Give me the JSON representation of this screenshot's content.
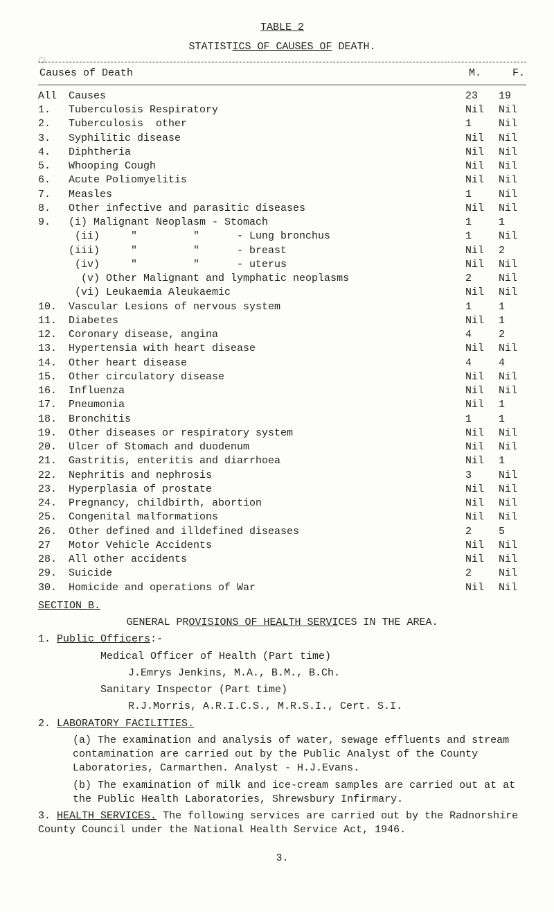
{
  "page": {
    "table_label": "TABLE 2",
    "subtitle_pre": "STATIST",
    "subtitle_u": "ICS OF CAUSES OF",
    "subtitle_post": " DEATH.",
    "side_mark": "◌",
    "header_left": "Causes of Death",
    "header_m": "M.",
    "header_f": "F.",
    "page_number": "3."
  },
  "rows": [
    {
      "n": "All",
      "d": "Causes",
      "m": "23",
      "f": "19"
    },
    {
      "n": "1.",
      "d": "Tuberculosis Respiratory",
      "m": "Nil",
      "f": "Nil"
    },
    {
      "n": "2.",
      "d": "Tuberculosis  other",
      "m": "1",
      "f": "Nil"
    },
    {
      "n": "3.",
      "d": "Syphilitic disease",
      "m": "Nil",
      "f": "Nil"
    },
    {
      "n": "4.",
      "d": "Diphtheria",
      "m": "Nil",
      "f": "Nil"
    },
    {
      "n": "5.",
      "d": "Whooping Cough",
      "m": "Nil",
      "f": "Nil"
    },
    {
      "n": "6.",
      "d": "Acute Poliomyelitis",
      "m": "Nil",
      "f": "Nil"
    },
    {
      "n": "7.",
      "d": "Measles",
      "m": "1",
      "f": "Nil"
    },
    {
      "n": "8.",
      "d": "Other infective and parasitic diseases",
      "m": "Nil",
      "f": "Nil"
    },
    {
      "n": "9.",
      "d": "(i) Malignant Neoplasm - Stomach",
      "m": "1",
      "f": "1"
    },
    {
      "n": "",
      "d": " (ii)     \"         \"      - Lung bronchus",
      "m": "1",
      "f": "Nil"
    },
    {
      "n": "",
      "d": "(iii)     \"         \"      - breast",
      "m": "Nil",
      "f": "2"
    },
    {
      "n": "",
      "d": " (iv)     \"         \"      - uterus",
      "m": "Nil",
      "f": "Nil"
    },
    {
      "n": "",
      "d": "  (v) Other Malignant and lymphatic neoplasms",
      "m": "2",
      "f": "Nil"
    },
    {
      "n": "",
      "d": " (vi) Leukaemia Aleukaemic",
      "m": "Nil",
      "f": "Nil"
    },
    {
      "n": "10.",
      "d": "Vascular Lesions of nervous system",
      "m": "1",
      "f": "1"
    },
    {
      "n": "11.",
      "d": "Diabetes",
      "m": "Nil",
      "f": "1"
    },
    {
      "n": "12.",
      "d": "Coronary disease, angina",
      "m": "4",
      "f": "2"
    },
    {
      "n": "13.",
      "d": "Hypertensia with heart disease",
      "m": "Nil",
      "f": "Nil"
    },
    {
      "n": "14.",
      "d": "Other heart disease",
      "m": "4",
      "f": "4"
    },
    {
      "n": "15.",
      "d": "Other circulatory disease",
      "m": "Nil",
      "f": "Nil"
    },
    {
      "n": "16.",
      "d": "Influenza",
      "m": "Nil",
      "f": "Nil"
    },
    {
      "n": "17.",
      "d": "Pneumonia",
      "m": "Nil",
      "f": "1"
    },
    {
      "n": "18.",
      "d": "Bronchitis",
      "m": "1",
      "f": "1"
    },
    {
      "n": "19.",
      "d": "Other diseases or respiratory system",
      "m": "Nil",
      "f": "Nil"
    },
    {
      "n": "20.",
      "d": "Ulcer of Stomach and duodenum",
      "m": "Nil",
      "f": "Nil"
    },
    {
      "n": "21.",
      "d": "Gastritis, enteritis and diarrhoea",
      "m": "Nil",
      "f": "1"
    },
    {
      "n": "22.",
      "d": "Nephritis and nephrosis",
      "m": "3",
      "f": "Nil"
    },
    {
      "n": "23.",
      "d": "Hyperplasia of prostate",
      "m": "Nil",
      "f": "Nil"
    },
    {
      "n": "24.",
      "d": "Pregnancy, childbirth, abortion",
      "m": "Nil",
      "f": "Nil"
    },
    {
      "n": "25.",
      "d": "Congenital malformations",
      "m": "Nil",
      "f": "Nil"
    },
    {
      "n": "26.",
      "d": "Other defined and illdefined diseases",
      "m": "2",
      "f": "5"
    },
    {
      "n": "27",
      "d": "Motor Vehicle Accidents",
      "m": "Nil",
      "f": "Nil"
    },
    {
      "n": "28.",
      "d": "All other accidents",
      "m": "Nil",
      "f": "Nil"
    },
    {
      "n": "29.",
      "d": "Suicide",
      "m": "2",
      "f": "Nil"
    },
    {
      "n": "30.",
      "d": "Homicide and operations of War",
      "m": "Nil",
      "f": "Nil"
    }
  ],
  "sectionB": {
    "label": "SECTION B.",
    "heading_pre": "GENERAL PR",
    "heading_u": "OVISIONS OF HEALTH SERVI",
    "heading_post": "CES IN THE AREA.",
    "item1_num": "1.",
    "item1_label": "Public Officers",
    "item1_suffix": ":-",
    "mo_line1": "Medical Officer of Health (Part time)",
    "mo_line2": "J.Emrys Jenkins, M.A., B.M., B.Ch.",
    "si_line1": "Sanitary Inspector (Part time)",
    "si_line2": "R.J.Morris, A.R.I.C.S., M.R.S.I., Cert. S.I.",
    "item2_num": "2.",
    "item2_label": "LABORATORY FACILITIES.",
    "para_a": "(a) The examination and analysis of water, sewage effluents and stream contamination are carried out by the Public Analyst of the County Laboratories, Carmarthen. Analyst - H.J.Evans.",
    "para_b": "(b) The examination of milk and ice-cream samples are carried out at at the Public Health Laboratories, Shrewsbury  Infirmary.",
    "item3_num": "3.",
    "item3_label": "HEALTH SERVICES.",
    "item3_text": "  The following services are carried out by the Radnorshire County Council under the National Health Service Act, 1946."
  }
}
